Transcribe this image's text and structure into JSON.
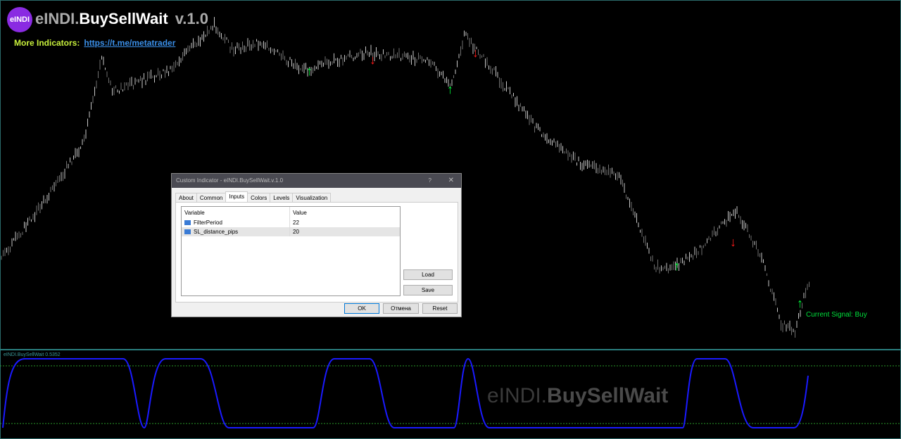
{
  "header": {
    "logo_text": "eINDI",
    "title_prefix": "eINDI.",
    "title_main": "BuySellWait",
    "version": "v.1.0",
    "more_label": "More Indicators:",
    "more_link": "https://t.me/metatrader"
  },
  "chart": {
    "current_signal": "Current Signal: Buy",
    "signal_colors": {
      "buy": "#00ff3c",
      "sell": "#ff1a1a"
    }
  },
  "indicator": {
    "label": "eINDI.BuySellWait 0.5352",
    "watermark_prefix": "eINDI.",
    "watermark_main": "BuySellWait",
    "line_color": "#1a1aff"
  },
  "dialog": {
    "title": "Custom Indicator - eINDI.BuySellWait.v.1.0",
    "help": "?",
    "close": "✕",
    "tabs": [
      "About",
      "Common",
      "Inputs",
      "Colors",
      "Levels",
      "Visualization"
    ],
    "active_tab": "Inputs",
    "columns": [
      "Variable",
      "Value"
    ],
    "rows": [
      {
        "variable": "FilterPeriod",
        "value": "22"
      },
      {
        "variable": "SL_distance_pips",
        "value": "20"
      }
    ],
    "load": "Load",
    "save": "Save",
    "ok": "OK",
    "cancel": "Отмена",
    "reset": "Reset"
  }
}
